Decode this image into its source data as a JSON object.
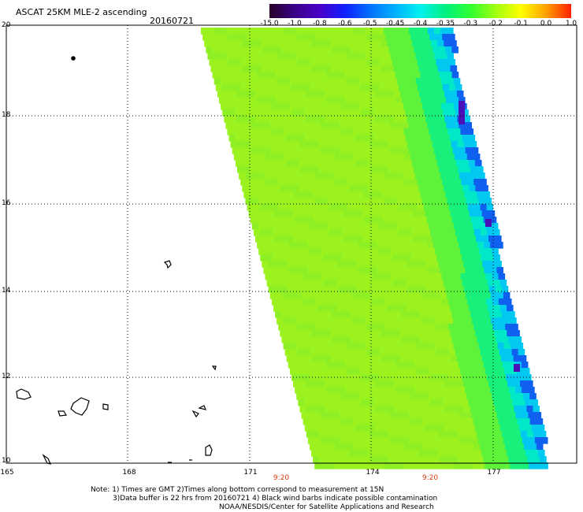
{
  "header": {
    "title": "ASCAT 25KM MLE-2 ascending",
    "date": "20160721"
  },
  "colorbar": {
    "labels": [
      "-15.0",
      "-1.0",
      "-0.8",
      "-0.6",
      "-0.5",
      "-0.45",
      "-0.4",
      "-0.35",
      "-0.3",
      "-0.2",
      "-0.1",
      "0.0",
      "1.0"
    ],
    "colors": [
      "#2a0026",
      "#3a0088",
      "#4a00c8",
      "#1020ff",
      "#0070ff",
      "#00b0ff",
      "#00f0f0",
      "#00f080",
      "#30ff30",
      "#a0ff10",
      "#ffff00",
      "#ffa000",
      "#ff2000"
    ]
  },
  "axes": {
    "y_ticks": [
      "20",
      "18",
      "16",
      "14",
      "12",
      "10"
    ],
    "x_ticks": [
      "165",
      "168",
      "171",
      "174",
      "177"
    ],
    "times": [
      "9:20",
      "9:20"
    ]
  },
  "footer": {
    "line1": "Note: 1) Times are GMT 2)Times along bottom correspond to measurement at 15N",
    "line2": "3)Data buffer is 22 hrs from 20160721 4) Black wind barbs indicate possible contamination",
    "line3": "NOAA/NESDIS/Center for Satellite Applications and Research"
  },
  "swath": {
    "main_color": "#9cf21e",
    "edge_colors": [
      "#5ef23a",
      "#18f07a",
      "#00e8c8",
      "#00c8f0",
      "#1060f0",
      "#4a10b8"
    ]
  }
}
